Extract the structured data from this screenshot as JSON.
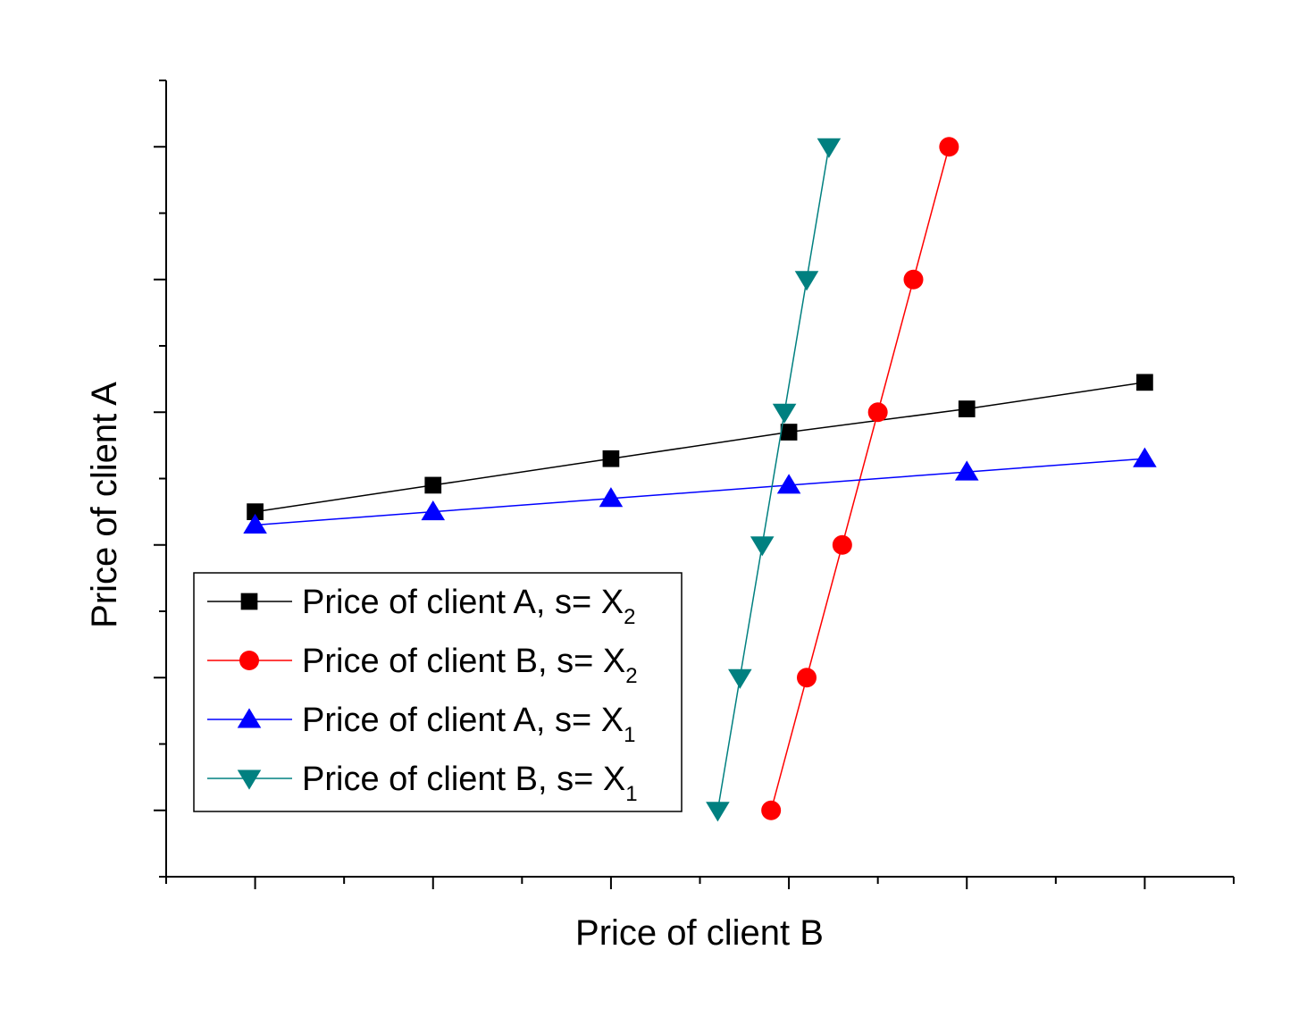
{
  "chart_data": {
    "type": "line",
    "title": "",
    "xlabel": "Price of client B",
    "ylabel": "Price of client A",
    "xlim": [
      -1,
      11
    ],
    "ylim": [
      -1,
      11
    ],
    "x_tick_labels_shown": false,
    "y_tick_labels_shown": false,
    "grid": false,
    "legend_position": "lower-left",
    "series": [
      {
        "name": "Price of client A, s= X",
        "name_subscript": "2",
        "marker": "square",
        "color": "#000000",
        "points": [
          [
            0,
            4.5
          ],
          [
            2,
            4.9
          ],
          [
            4,
            5.3
          ],
          [
            6,
            5.7
          ],
          [
            8,
            6.05
          ],
          [
            10,
            6.45
          ]
        ]
      },
      {
        "name": "Price of client B, s= X",
        "name_subscript": "2",
        "marker": "circle",
        "color": "#ff0000",
        "points": [
          [
            5.8,
            0
          ],
          [
            6.2,
            2
          ],
          [
            6.6,
            4
          ],
          [
            7.0,
            6
          ],
          [
            7.4,
            8
          ],
          [
            7.8,
            10
          ]
        ]
      },
      {
        "name": "Price of client A, s= X",
        "name_subscript": "1",
        "marker": "triangle-up",
        "color": "#0000ff",
        "points": [
          [
            0,
            4.3
          ],
          [
            2,
            4.5
          ],
          [
            4,
            4.7
          ],
          [
            6,
            4.9
          ],
          [
            8,
            5.1
          ],
          [
            10,
            5.3
          ]
        ]
      },
      {
        "name": "Price of client B, s= X",
        "name_subscript": "1",
        "marker": "triangle-down",
        "color": "#008080",
        "points": [
          [
            5.2,
            0
          ],
          [
            5.45,
            2
          ],
          [
            5.7,
            4
          ],
          [
            5.95,
            6
          ],
          [
            6.2,
            8
          ],
          [
            6.45,
            10
          ]
        ]
      }
    ]
  }
}
